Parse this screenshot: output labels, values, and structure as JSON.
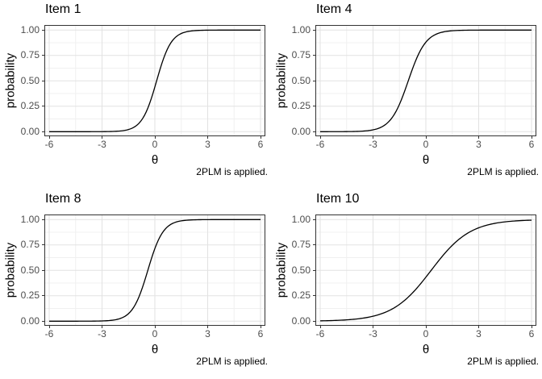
{
  "style": {
    "background": "#ffffff",
    "panel_background": "#ffffff",
    "panel_border": "#333333",
    "grid_major": "#e2e2e2",
    "grid_minor": "#f0f0f0",
    "tick_color": "#333333",
    "tick_label_color": "#4d4d4d",
    "text_color": "#000000",
    "curve_color": "#000000"
  },
  "chart_data": [
    {
      "type": "line",
      "title": "Item 1",
      "xlabel": "θ",
      "ylabel": "probability",
      "caption": "2PLM is applied.",
      "xlim": [
        -6,
        6
      ],
      "ylim": [
        0,
        1
      ],
      "x_ticks": [
        -6,
        -3,
        0,
        3,
        6
      ],
      "x_tick_labels": [
        "-6",
        "-3",
        "0",
        "3",
        "6"
      ],
      "y_ticks": [
        0,
        0.25,
        0.5,
        0.75,
        1
      ],
      "y_tick_labels": [
        "0.00",
        "0.25",
        "0.50",
        "0.75",
        "1.00"
      ],
      "x_minor": [
        -4.5,
        -1.5,
        1.5,
        4.5
      ],
      "y_minor": [
        0.125,
        0.375,
        0.625,
        0.875
      ],
      "grid": true,
      "legend": "none",
      "model": "2PL logistic: P = 1/(1+exp(-a(θ-b)))",
      "params": {
        "a": 2.4,
        "b": 0.1
      },
      "points": [
        [
          -6,
          0.0
        ],
        [
          -5,
          0.0
        ],
        [
          -4,
          0.0
        ],
        [
          -3,
          0.001
        ],
        [
          -2,
          0.006
        ],
        [
          -1,
          0.067
        ],
        [
          0,
          0.44
        ],
        [
          1,
          0.897
        ],
        [
          2,
          0.99
        ],
        [
          3,
          0.999
        ],
        [
          4,
          1.0
        ],
        [
          5,
          1.0
        ],
        [
          6,
          1.0
        ]
      ]
    },
    {
      "type": "line",
      "title": "Item 4",
      "xlabel": "θ",
      "ylabel": "probability",
      "caption": "2PLM is applied.",
      "xlim": [
        -6,
        6
      ],
      "ylim": [
        0,
        1
      ],
      "x_ticks": [
        -6,
        -3,
        0,
        3,
        6
      ],
      "x_tick_labels": [
        "-6",
        "-3",
        "0",
        "3",
        "6"
      ],
      "y_ticks": [
        0,
        0.25,
        0.5,
        0.75,
        1
      ],
      "y_tick_labels": [
        "0.00",
        "0.25",
        "0.50",
        "0.75",
        "1.00"
      ],
      "x_minor": [
        -4.5,
        -1.5,
        1.5,
        4.5
      ],
      "y_minor": [
        0.125,
        0.375,
        0.625,
        0.875
      ],
      "grid": true,
      "legend": "none",
      "model": "2PL logistic: P = 1/(1+exp(-a(θ-b)))",
      "params": {
        "a": 2.0,
        "b": -1.0
      },
      "points": [
        [
          -6,
          0.0
        ],
        [
          -5,
          0.0
        ],
        [
          -4,
          0.002
        ],
        [
          -3,
          0.018
        ],
        [
          -2,
          0.119
        ],
        [
          -1,
          0.5
        ],
        [
          0,
          0.881
        ],
        [
          1,
          0.982
        ],
        [
          2,
          0.998
        ],
        [
          3,
          1.0
        ],
        [
          4,
          1.0
        ],
        [
          5,
          1.0
        ],
        [
          6,
          1.0
        ]
      ]
    },
    {
      "type": "line",
      "title": "Item 8",
      "xlabel": "θ",
      "ylabel": "probability",
      "caption": "2PLM is applied.",
      "xlim": [
        -6,
        6
      ],
      "ylim": [
        0,
        1
      ],
      "x_ticks": [
        -6,
        -3,
        0,
        3,
        6
      ],
      "x_tick_labels": [
        "-6",
        "-3",
        "0",
        "3",
        "6"
      ],
      "y_ticks": [
        0,
        0.25,
        0.5,
        0.75,
        1
      ],
      "y_tick_labels": [
        "0.00",
        "0.25",
        "0.50",
        "0.75",
        "1.00"
      ],
      "x_minor": [
        -4.5,
        -1.5,
        1.5,
        4.5
      ],
      "y_minor": [
        0.125,
        0.375,
        0.625,
        0.875
      ],
      "grid": true,
      "legend": "none",
      "model": "2PL logistic: P = 1/(1+exp(-a(θ-b)))",
      "params": {
        "a": 2.3,
        "b": -0.4
      },
      "points": [
        [
          -6,
          0.0
        ],
        [
          -5,
          0.0
        ],
        [
          -4,
          0.0
        ],
        [
          -3,
          0.003
        ],
        [
          -2,
          0.025
        ],
        [
          -1,
          0.201
        ],
        [
          0,
          0.715
        ],
        [
          1,
          0.962
        ],
        [
          2,
          0.996
        ],
        [
          3,
          1.0
        ],
        [
          4,
          1.0
        ],
        [
          5,
          1.0
        ],
        [
          6,
          1.0
        ]
      ]
    },
    {
      "type": "line",
      "title": "Item 10",
      "xlabel": "θ",
      "ylabel": "probability",
      "caption": "2PLM is applied.",
      "xlim": [
        -6,
        6
      ],
      "ylim": [
        0,
        1
      ],
      "x_ticks": [
        -6,
        -3,
        0,
        3,
        6
      ],
      "x_tick_labels": [
        "-6",
        "-3",
        "0",
        "3",
        "6"
      ],
      "y_ticks": [
        0,
        0.25,
        0.5,
        0.75,
        1
      ],
      "y_tick_labels": [
        "0.00",
        "0.25",
        "0.50",
        "0.75",
        "1.00"
      ],
      "x_minor": [
        -4.5,
        -1.5,
        1.5,
        4.5
      ],
      "y_minor": [
        0.125,
        0.375,
        0.625,
        0.875
      ],
      "grid": true,
      "legend": "none",
      "model": "2PL logistic: P = 1/(1+exp(-a(θ-b)))",
      "params": {
        "a": 0.9,
        "b": 0.3
      },
      "points": [
        [
          -6,
          0.003
        ],
        [
          -5,
          0.008
        ],
        [
          -4,
          0.02
        ],
        [
          -3,
          0.049
        ],
        [
          -2,
          0.112
        ],
        [
          -1,
          0.237
        ],
        [
          0,
          0.433
        ],
        [
          1,
          0.652
        ],
        [
          2,
          0.822
        ],
        [
          3,
          0.919
        ],
        [
          4,
          0.965
        ],
        [
          5,
          0.985
        ],
        [
          6,
          0.994
        ]
      ]
    }
  ]
}
